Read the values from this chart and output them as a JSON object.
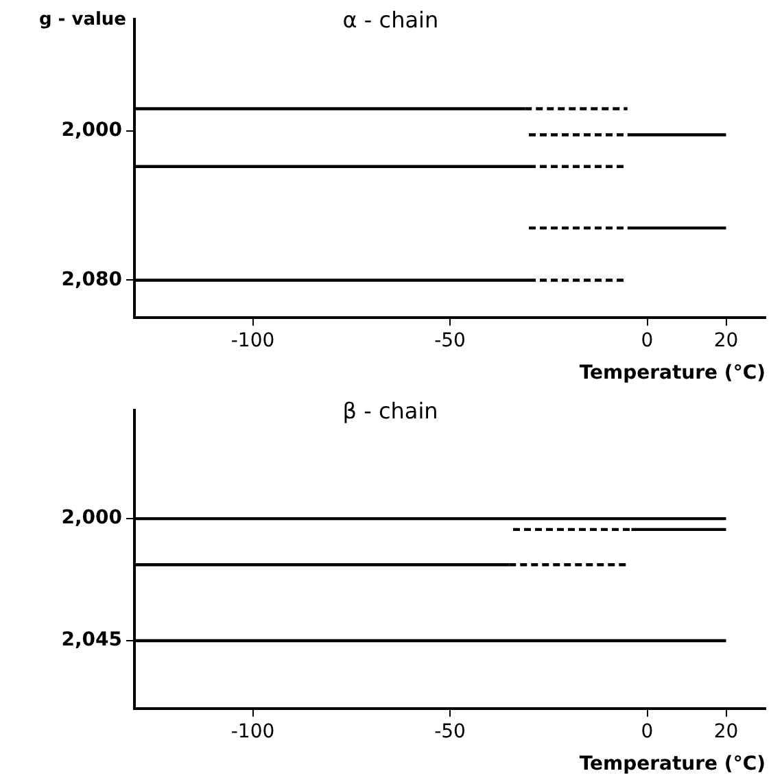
{
  "chart_data": [
    {
      "type": "line",
      "title": "α - chain",
      "ylabel": "g - value",
      "xlabel": "Temperature (°C)",
      "xlim": [
        -130,
        30
      ],
      "xticks": [
        -100,
        -50,
        0,
        20
      ],
      "ylim": [
        2100,
        1940
      ],
      "yticks": [
        {
          "value": 2000,
          "label": "2,000"
        },
        {
          "value": 2080,
          "label": "2,080"
        }
      ],
      "grid": false,
      "legend": false,
      "marker": "none",
      "series": [
        {
          "color": "#000000",
          "line_style": "solid",
          "x": [
            -130,
            -31
          ],
          "values": [
            1988,
            1988
          ]
        },
        {
          "color": "#000000",
          "line_style": "dashed",
          "x": [
            -31,
            -5
          ],
          "values": [
            1988,
            1988
          ]
        },
        {
          "color": "#000000",
          "line_style": "dashed",
          "x": [
            -30,
            -5
          ],
          "values": [
            2002,
            2002
          ]
        },
        {
          "color": "#000000",
          "line_style": "solid",
          "x": [
            -5,
            20
          ],
          "values": [
            2002,
            2002
          ]
        },
        {
          "color": "#000000",
          "line_style": "solid",
          "x": [
            -130,
            -30
          ],
          "values": [
            2019,
            2019
          ]
        },
        {
          "color": "#000000",
          "line_style": "dashed",
          "x": [
            -30,
            -5
          ],
          "values": [
            2019,
            2019
          ]
        },
        {
          "color": "#000000",
          "line_style": "dashed",
          "x": [
            -30,
            -5
          ],
          "values": [
            2052,
            2052
          ]
        },
        {
          "color": "#000000",
          "line_style": "solid",
          "x": [
            -5,
            20
          ],
          "values": [
            2052,
            2052
          ]
        },
        {
          "color": "#000000",
          "line_style": "solid",
          "x": [
            -130,
            -30
          ],
          "values": [
            2080,
            2080
          ]
        },
        {
          "color": "#000000",
          "line_style": "dashed",
          "x": [
            -30,
            -5
          ],
          "values": [
            2080,
            2080
          ]
        }
      ]
    },
    {
      "type": "line",
      "title": "β - chain",
      "xlabel": "Temperature (°C)",
      "xlim": [
        -130,
        30
      ],
      "xticks": [
        -100,
        -50,
        0,
        20
      ],
      "ylim": [
        2070,
        1960
      ],
      "yticks": [
        {
          "value": 2000,
          "label": "2,000"
        },
        {
          "value": 2045,
          "label": "2,045"
        }
      ],
      "grid": false,
      "legend": false,
      "marker": "none",
      "series": [
        {
          "color": "#000000",
          "line_style": "solid",
          "x": [
            -130,
            20
          ],
          "values": [
            2000,
            2000
          ]
        },
        {
          "color": "#000000",
          "line_style": "dashed",
          "x": [
            -34,
            -4
          ],
          "values": [
            2004,
            2004
          ]
        },
        {
          "color": "#000000",
          "line_style": "solid",
          "x": [
            -4,
            20
          ],
          "values": [
            2004,
            2004
          ]
        },
        {
          "color": "#000000",
          "line_style": "solid",
          "x": [
            -130,
            -35
          ],
          "values": [
            2017,
            2017
          ]
        },
        {
          "color": "#000000",
          "line_style": "dashed",
          "x": [
            -35,
            -5
          ],
          "values": [
            2017,
            2017
          ]
        },
        {
          "color": "#000000",
          "line_style": "solid",
          "x": [
            -130,
            20
          ],
          "values": [
            2045,
            2045
          ]
        }
      ]
    }
  ]
}
